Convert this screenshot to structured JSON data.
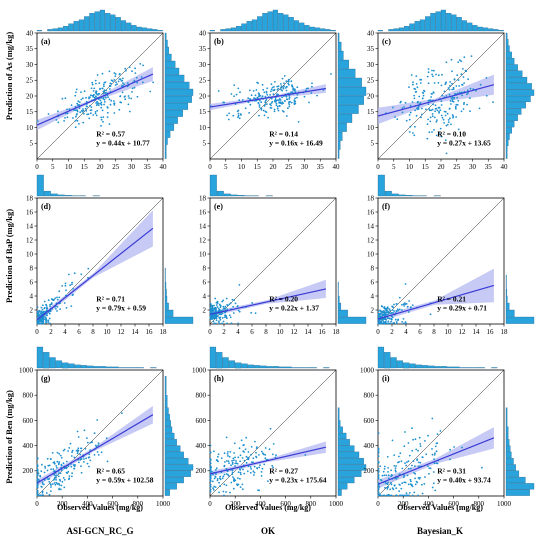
{
  "figure": {
    "x_axis_label": "Observed Values (mg/kg)",
    "column_titles": [
      "ASI-GCN_RC_G",
      "OK",
      "Bayesian_K"
    ],
    "row_labels": [
      "Prediction of As (mg/kg)",
      "Prediction of BaP (mg/kg)",
      "Prediction of Ben (mg/kg)"
    ],
    "colors": {
      "points": "#1e90d0",
      "fit_line": "#3b3bd6",
      "ci_band": "#b3b8f2",
      "hist_bar": "#29a3dc",
      "one_to_one": "#222222"
    }
  },
  "chart_data": [
    {
      "id": "a",
      "panel_label": "(a)",
      "type": "scatter",
      "row": 0,
      "col": 0,
      "xlim": [
        0,
        40
      ],
      "ylim": [
        0,
        40
      ],
      "xticks": [
        0,
        5,
        10,
        15,
        20,
        25,
        30,
        35,
        40
      ],
      "yticks": [
        5,
        10,
        15,
        20,
        25,
        30,
        35,
        40
      ],
      "r2_text": "R² = 0.57",
      "eq_text": "y = 0.44x + 10.77",
      "slope": 0.44,
      "intercept": 10.77,
      "ci_halfwidth": [
        1.6,
        0.4,
        2.2
      ],
      "points_summary": {
        "n": 230,
        "x_center": 20,
        "x_spread": 6.5,
        "residual_sd": 3.2
      },
      "x_hist_bins": [
        1,
        0,
        2,
        3,
        4,
        6,
        9,
        12,
        14,
        18,
        22,
        24,
        26,
        22,
        20,
        17,
        13,
        10,
        7,
        5,
        4,
        3,
        2,
        1
      ],
      "y_hist_bins": [
        1,
        1,
        2,
        4,
        7,
        10,
        14,
        18,
        21,
        22,
        19,
        15,
        11,
        8,
        5,
        3,
        2,
        1
      ]
    },
    {
      "id": "b",
      "panel_label": "(b)",
      "type": "scatter",
      "row": 0,
      "col": 1,
      "xlim": [
        0,
        40
      ],
      "ylim": [
        0,
        40
      ],
      "xticks": [
        0,
        5,
        10,
        15,
        20,
        25,
        30,
        35,
        40
      ],
      "yticks": [
        5,
        10,
        15,
        20,
        25,
        30,
        35,
        40
      ],
      "r2_text": "R² = 0.14",
      "eq_text": "y = 0.16x + 16.49",
      "slope": 0.16,
      "intercept": 16.49,
      "ci_halfwidth": [
        1.0,
        0.3,
        1.4
      ],
      "points_summary": {
        "n": 230,
        "x_center": 20,
        "x_spread": 6.5,
        "residual_sd": 2.6
      },
      "x_hist_bins": [
        1,
        0,
        2,
        3,
        4,
        6,
        9,
        12,
        14,
        18,
        22,
        24,
        26,
        22,
        20,
        17,
        13,
        10,
        7,
        5,
        4,
        3,
        2,
        1
      ],
      "y_hist_bins": [
        1,
        2,
        4,
        8,
        13,
        19,
        24,
        26,
        22,
        16,
        10,
        5,
        3,
        1
      ]
    },
    {
      "id": "c",
      "panel_label": "(c)",
      "type": "scatter",
      "row": 0,
      "col": 2,
      "xlim": [
        0,
        40
      ],
      "ylim": [
        0,
        40
      ],
      "xticks": [
        0,
        5,
        10,
        15,
        20,
        25,
        30,
        35,
        40
      ],
      "yticks": [
        5,
        10,
        15,
        20,
        25,
        30,
        35,
        40
      ],
      "r2_text": "R² = 0.10",
      "eq_text": "y = 0.27x + 13.65",
      "slope": 0.27,
      "intercept": 13.65,
      "ci_halfwidth": [
        2.6,
        0.6,
        3.2
      ],
      "points_summary": {
        "n": 230,
        "x_center": 20,
        "x_spread": 6.5,
        "residual_sd": 5.5
      },
      "x_hist_bins": [
        1,
        0,
        2,
        3,
        4,
        6,
        9,
        12,
        14,
        18,
        22,
        24,
        26,
        22,
        20,
        17,
        13,
        10,
        7,
        5,
        4,
        3,
        2,
        1
      ],
      "y_hist_bins": [
        1,
        1,
        2,
        3,
        5,
        7,
        10,
        13,
        17,
        21,
        24,
        22,
        18,
        14,
        10,
        7,
        5,
        3,
        2,
        1
      ]
    },
    {
      "id": "d",
      "panel_label": "(d)",
      "type": "scatter",
      "row": 1,
      "col": 0,
      "xlim": [
        0,
        18
      ],
      "ylim": [
        0,
        18
      ],
      "xticks": [
        0,
        2,
        4,
        6,
        8,
        10,
        12,
        14,
        16,
        18
      ],
      "yticks": [
        2,
        4,
        6,
        8,
        10,
        12,
        14,
        16,
        18
      ],
      "r2_text": "R² = 0.71",
      "eq_text": "y = 0.79x + 0.59",
      "slope": 0.79,
      "intercept": 0.59,
      "ci_halfwidth": [
        0.4,
        0.3,
        2.6
      ],
      "points_summary": {
        "n": 200,
        "x_center": 1.5,
        "x_spread": 2.4,
        "residual_sd": 1.3
      },
      "x_hist_bins": [
        60,
        14,
        6,
        3,
        2,
        1,
        1,
        0,
        1,
        0,
        0,
        0,
        0,
        0,
        0,
        0,
        0,
        0
      ],
      "y_hist_bins": [
        55,
        16,
        7,
        4,
        3,
        2,
        1,
        1,
        0,
        0,
        0,
        0,
        0,
        0,
        0,
        0,
        0,
        0
      ]
    },
    {
      "id": "e",
      "panel_label": "(e)",
      "type": "scatter",
      "row": 1,
      "col": 1,
      "xlim": [
        0,
        18
      ],
      "ylim": [
        0,
        18
      ],
      "xticks": [
        0,
        2,
        4,
        6,
        8,
        10,
        12,
        14,
        16,
        18
      ],
      "yticks": [
        2,
        4,
        6,
        8,
        10,
        12,
        14,
        16,
        18
      ],
      "r2_text": "R² = 0.20",
      "eq_text": "y = 0.22x + 1.37",
      "slope": 0.22,
      "intercept": 1.37,
      "ci_halfwidth": [
        0.35,
        0.25,
        1.3
      ],
      "points_summary": {
        "n": 200,
        "x_center": 1.5,
        "x_spread": 2.4,
        "residual_sd": 1.1
      },
      "x_hist_bins": [
        60,
        14,
        6,
        3,
        2,
        1,
        1,
        0,
        1,
        0,
        0,
        0,
        0,
        0,
        0,
        0,
        0,
        0
      ],
      "y_hist_bins": [
        58,
        20,
        6,
        3,
        1,
        1,
        0,
        0,
        0,
        0,
        0,
        0,
        0,
        0,
        0,
        0,
        0,
        0
      ]
    },
    {
      "id": "f",
      "panel_label": "(f)",
      "type": "scatter",
      "row": 1,
      "col": 2,
      "xlim": [
        0,
        18
      ],
      "ylim": [
        0,
        18
      ],
      "xticks": [
        0,
        2,
        4,
        6,
        8,
        10,
        12,
        14,
        16,
        18
      ],
      "yticks": [
        2,
        4,
        6,
        8,
        10,
        12,
        14,
        16,
        18
      ],
      "r2_text": "R² = 0.21",
      "eq_text": "y = 0.29x + 0.71",
      "slope": 0.29,
      "intercept": 0.71,
      "ci_halfwidth": [
        0.4,
        0.3,
        2.4
      ],
      "points_summary": {
        "n": 200,
        "x_center": 1.5,
        "x_spread": 2.4,
        "residual_sd": 1.3
      },
      "x_hist_bins": [
        60,
        14,
        6,
        3,
        2,
        1,
        1,
        0,
        1,
        0,
        0,
        0,
        0,
        0,
        0,
        0,
        0,
        0
      ],
      "y_hist_bins": [
        60,
        18,
        7,
        3,
        2,
        1,
        1,
        0,
        0,
        0,
        0,
        0,
        0,
        0,
        0,
        0,
        0,
        0
      ]
    },
    {
      "id": "g",
      "panel_label": "(g)",
      "type": "scatter",
      "row": 2,
      "col": 0,
      "xlim": [
        0,
        1000
      ],
      "ylim": [
        0,
        1000
      ],
      "xticks": [
        0,
        200,
        400,
        600,
        800,
        1000
      ],
      "yticks": [
        200,
        400,
        600,
        800,
        1000
      ],
      "r2_text": "R² = 0.65",
      "eq_text": "y = 0.59x + 102.58",
      "slope": 0.59,
      "intercept": 102.58,
      "ci_halfwidth": [
        25,
        15,
        70
      ],
      "points_summary": {
        "n": 220,
        "x_center": 180,
        "x_spread": 190,
        "residual_sd": 85
      },
      "x_hist_bins": [
        40,
        30,
        20,
        14,
        10,
        8,
        6,
        5,
        4,
        3,
        3,
        2,
        2,
        1,
        1,
        1,
        1,
        0,
        1,
        0
      ],
      "y_hist_bins": [
        4,
        10,
        16,
        22,
        24,
        20,
        16,
        13,
        10,
        8,
        6,
        5,
        4,
        3,
        2,
        2,
        1,
        1,
        1,
        0
      ]
    },
    {
      "id": "h",
      "panel_label": "(h)",
      "type": "scatter",
      "row": 2,
      "col": 1,
      "xlim": [
        0,
        1000
      ],
      "ylim": [
        0,
        1000
      ],
      "xticks": [
        0,
        200,
        400,
        600,
        800,
        1000
      ],
      "yticks": [
        200,
        400,
        600,
        800,
        1000
      ],
      "r2_text": "R² = 0.27",
      "eq_text": "y = 0.23x + 175.64",
      "slope": 0.23,
      "intercept": 175.64,
      "ci_halfwidth": [
        22,
        12,
        45
      ],
      "points_summary": {
        "n": 220,
        "x_center": 180,
        "x_spread": 190,
        "residual_sd": 100
      },
      "x_hist_bins": [
        40,
        30,
        20,
        14,
        10,
        8,
        6,
        5,
        4,
        3,
        3,
        2,
        2,
        1,
        1,
        1,
        1,
        0,
        1,
        0
      ],
      "y_hist_bins": [
        3,
        8,
        14,
        20,
        24,
        22,
        18,
        14,
        10,
        7,
        4,
        2,
        1,
        1,
        0,
        0,
        0,
        0,
        0,
        0
      ]
    },
    {
      "id": "i",
      "panel_label": "(i)",
      "type": "scatter",
      "row": 2,
      "col": 2,
      "xlim": [
        0,
        1000
      ],
      "ylim": [
        0,
        1000
      ],
      "xticks": [
        0,
        200,
        400,
        600,
        800,
        1000
      ],
      "yticks": [
        200,
        400,
        600,
        800,
        1000
      ],
      "r2_text": "R² = 0.31",
      "eq_text": "y = 0.40x + 93.74",
      "slope": 0.4,
      "intercept": 93.74,
      "ci_halfwidth": [
        35,
        20,
        85
      ],
      "points_summary": {
        "n": 220,
        "x_center": 180,
        "x_spread": 190,
        "residual_sd": 140
      },
      "x_hist_bins": [
        40,
        30,
        20,
        14,
        10,
        8,
        6,
        5,
        4,
        3,
        3,
        2,
        2,
        1,
        1,
        1,
        1,
        0,
        1,
        0
      ],
      "y_hist_bins": [
        22,
        26,
        18,
        12,
        9,
        7,
        5,
        4,
        3,
        2,
        2,
        1,
        1,
        1,
        0,
        0,
        0,
        0,
        0,
        0
      ]
    }
  ]
}
